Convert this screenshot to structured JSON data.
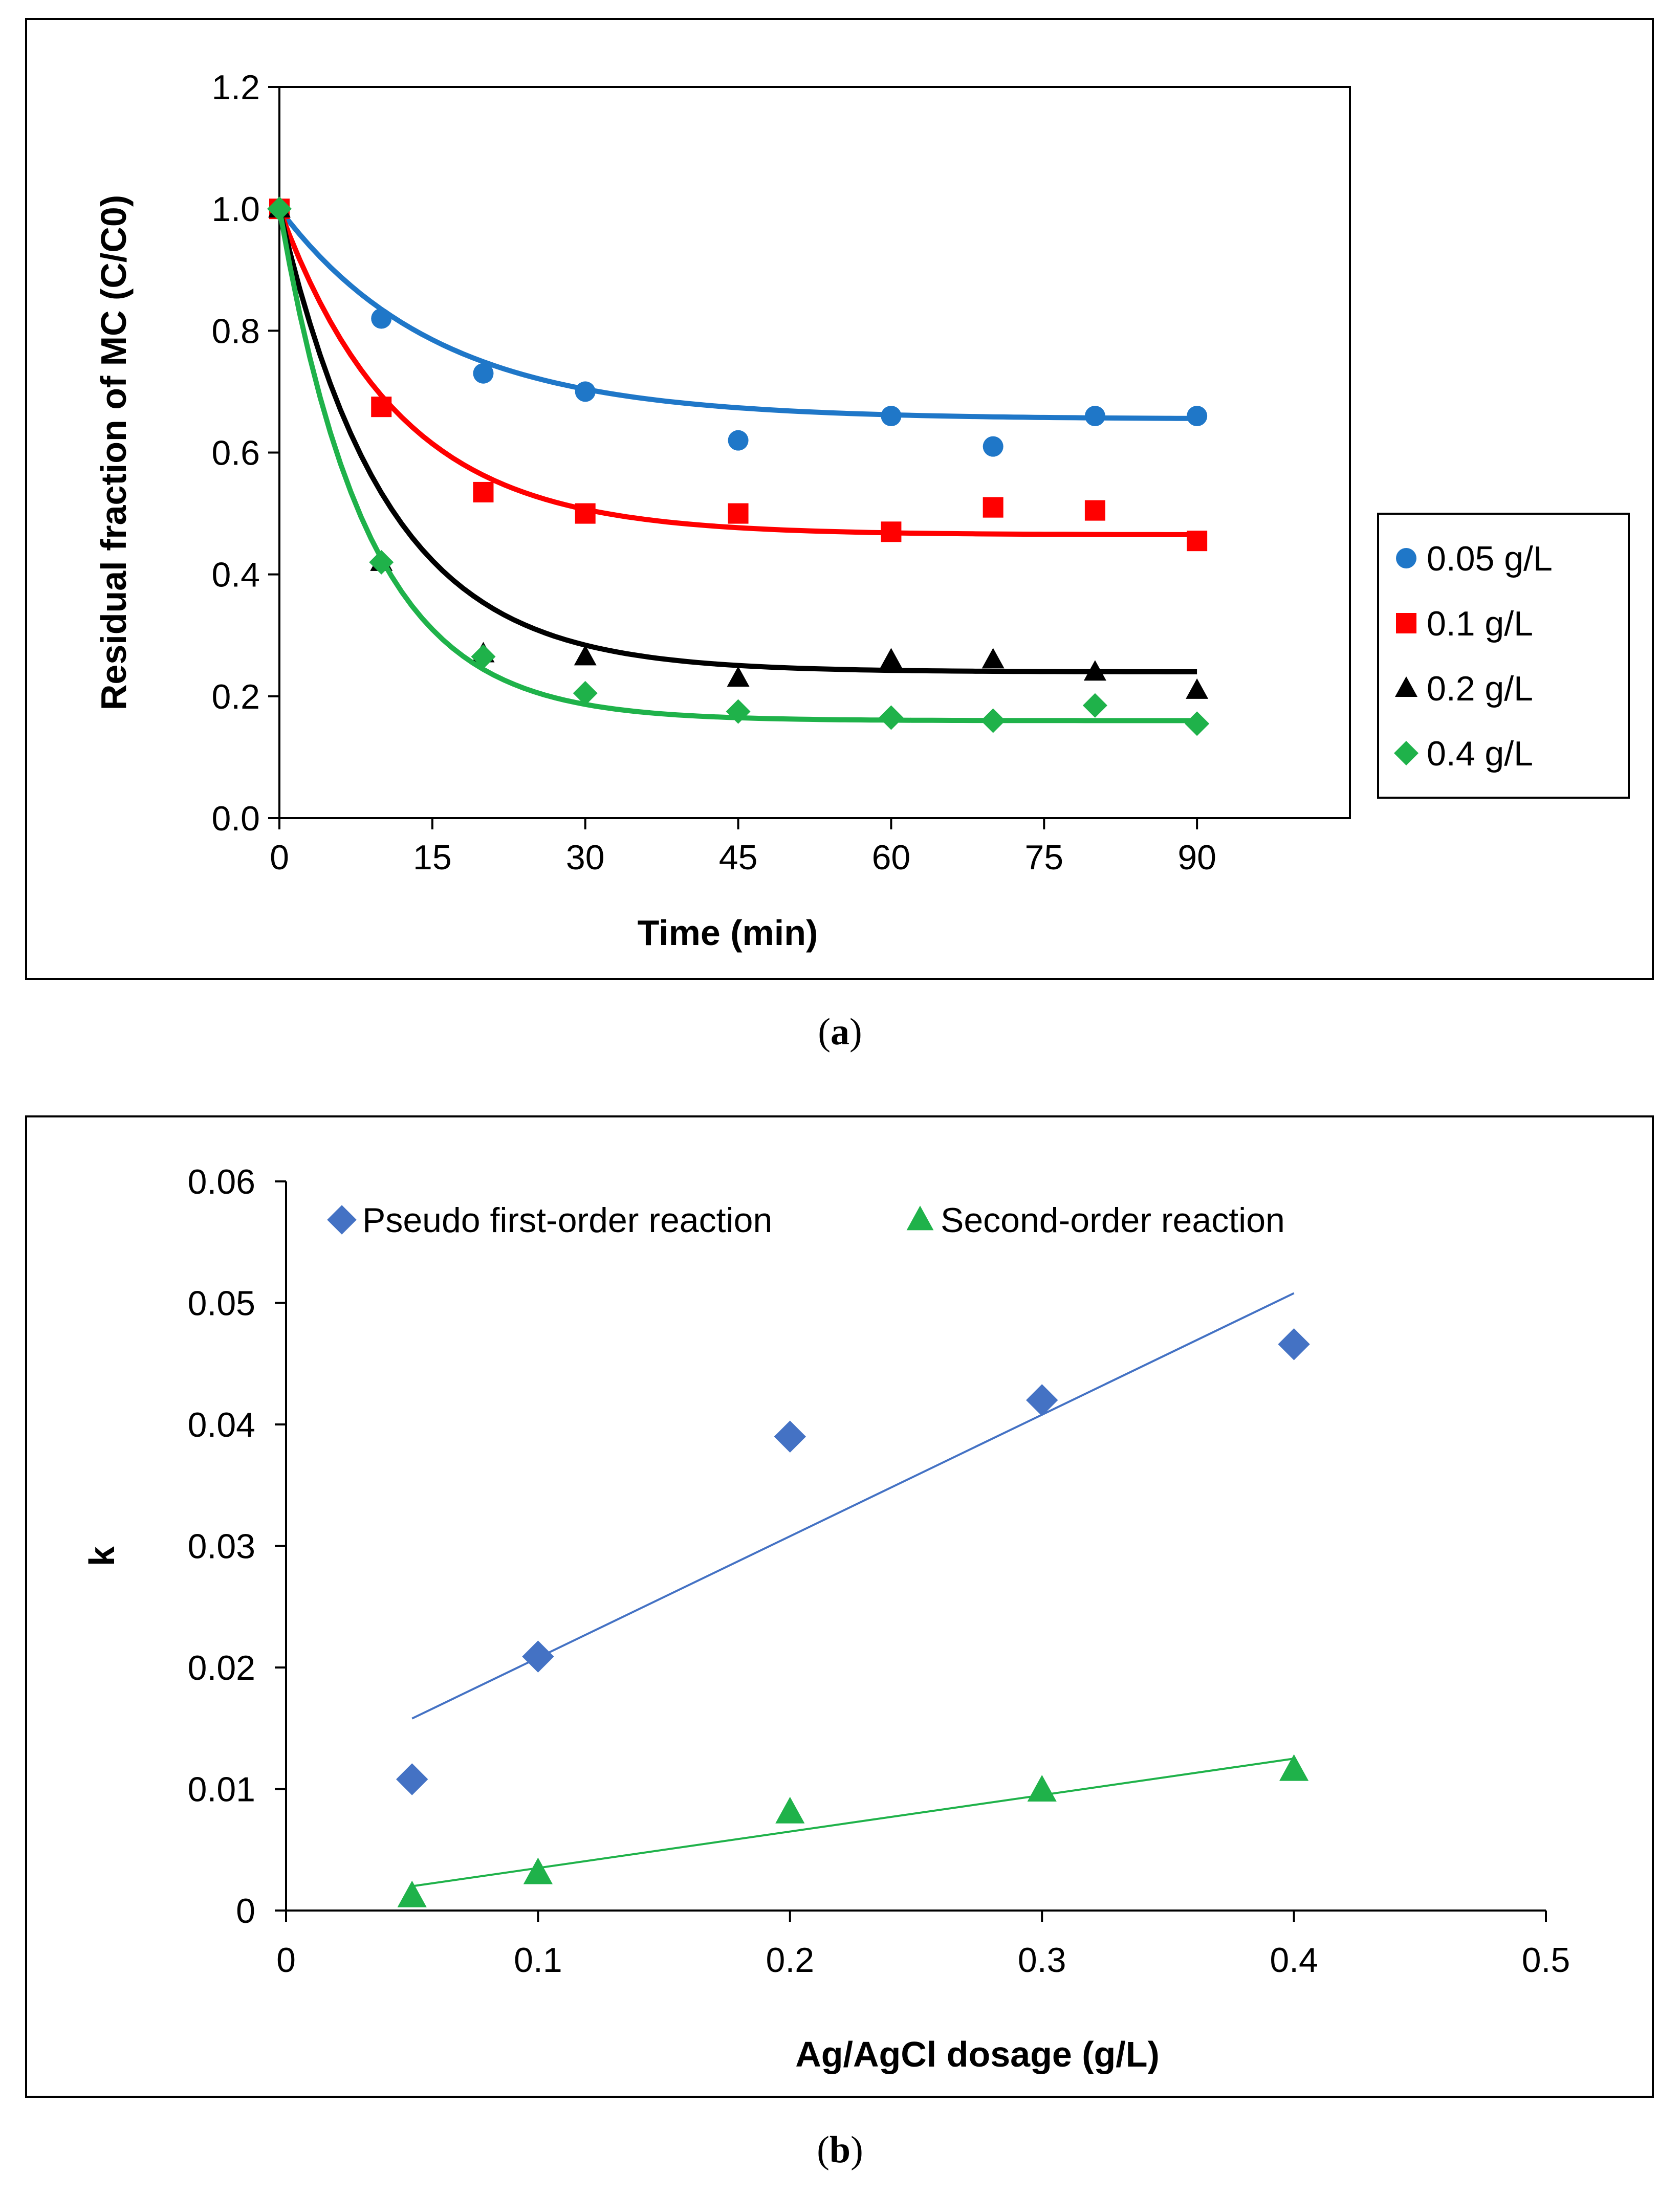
{
  "chart_data": [
    {
      "type": "scatter",
      "panel": "a",
      "caption_letter": "a",
      "xlabel": "Time (min)",
      "ylabel": "Residual fraction of MC (C/C0)",
      "xlim": [
        0,
        105
      ],
      "ylim": [
        0,
        1.2
      ],
      "xticks": [
        0,
        15,
        30,
        45,
        60,
        75,
        90
      ],
      "yticks": [
        "0.0",
        "0.2",
        "0.4",
        "0.6",
        "0.8",
        "1.0",
        "1.2"
      ],
      "legend_position": "right",
      "series": [
        {
          "name": "0.05 g/L",
          "color": "#1f77c8",
          "marker": "circle",
          "x": [
            0,
            10,
            20,
            30,
            45,
            60,
            70,
            80,
            90
          ],
          "y": [
            1.0,
            0.82,
            0.73,
            0.7,
            0.62,
            0.66,
            0.61,
            0.66,
            0.66
          ],
          "fit": {
            "plateau": 0.655,
            "k": 0.065
          }
        },
        {
          "name": "0.1 g/L",
          "color": "#ff0000",
          "marker": "square",
          "x": [
            0,
            10,
            20,
            30,
            45,
            60,
            70,
            80,
            90
          ],
          "y": [
            1.0,
            0.675,
            0.535,
            0.5,
            0.5,
            0.47,
            0.51,
            0.505,
            0.455
          ],
          "fit": {
            "plateau": 0.465,
            "k": 0.085
          }
        },
        {
          "name": "0.2 g/L",
          "color": "#000000",
          "marker": "triangle",
          "x": [
            0,
            10,
            20,
            30,
            45,
            60,
            70,
            80,
            90
          ],
          "y": [
            1.0,
            0.42,
            0.27,
            0.265,
            0.23,
            0.26,
            0.26,
            0.24,
            0.21
          ],
          "fit": {
            "plateau": 0.24,
            "k": 0.095
          }
        },
        {
          "name": "0.4 g/L",
          "color": "#1fb24a",
          "marker": "diamond",
          "x": [
            0,
            10,
            20,
            30,
            45,
            60,
            70,
            80,
            90
          ],
          "y": [
            1.0,
            0.42,
            0.265,
            0.205,
            0.175,
            0.165,
            0.16,
            0.185,
            0.155
          ],
          "fit": {
            "plateau": 0.16,
            "k": 0.115
          }
        }
      ]
    },
    {
      "type": "scatter",
      "panel": "b",
      "caption_letter": "b",
      "xlabel": "Ag/AgCl dosage (g/L)",
      "ylabel": "k",
      "xlim": [
        0,
        0.5
      ],
      "ylim": [
        0,
        0.06
      ],
      "xticks": [
        "0",
        "0.1",
        "0.2",
        "0.3",
        "0.4",
        "0.5"
      ],
      "yticks": [
        "0",
        "0.01",
        "0.02",
        "0.03",
        "0.04",
        "0.05",
        "0.06"
      ],
      "legend_position": "top",
      "series": [
        {
          "name": "Pseudo first-order reaction",
          "color": "#4472c4",
          "marker": "diamond",
          "x": [
            0.05,
            0.1,
            0.2,
            0.3,
            0.4
          ],
          "y": [
            0.0108,
            0.0209,
            0.039,
            0.042,
            0.0466
          ],
          "trendline": {
            "x": [
              0.05,
              0.4
            ],
            "y": [
              0.0158,
              0.0508
            ]
          }
        },
        {
          "name": "Second-order reaction",
          "color": "#1fb24a",
          "marker": "triangle",
          "x": [
            0.05,
            0.1,
            0.2,
            0.3,
            0.4
          ],
          "y": [
            0.0012,
            0.0031,
            0.0081,
            0.0099,
            0.0116
          ],
          "trendline": {
            "x": [
              0.05,
              0.4
            ],
            "y": [
              0.002,
              0.0125
            ]
          }
        }
      ]
    }
  ]
}
